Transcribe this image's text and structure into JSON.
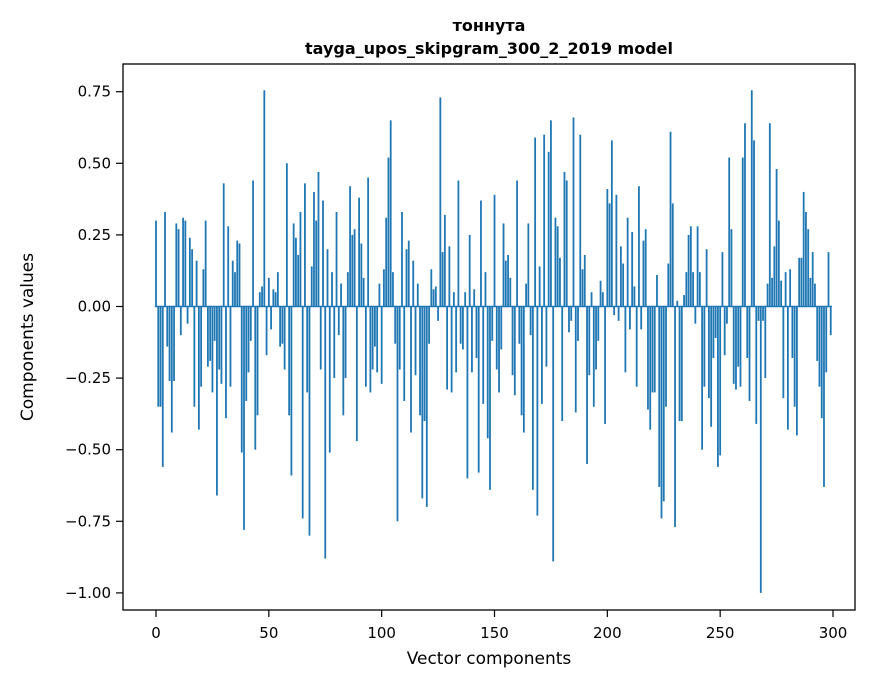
{
  "chart_data": {
    "type": "bar",
    "title_line1": "тоннута",
    "title_line2": "tayga_upos_skipgram_300_2_2019 model",
    "xlabel": "Vector components",
    "ylabel": "Components values",
    "bar_color": "#1f77b4",
    "spine_color": "#000000",
    "background_color": "#ffffff",
    "legend": "none",
    "grid": false,
    "xlim": [
      -15,
      310
    ],
    "ylim": [
      -1.06,
      0.85
    ],
    "x_tick_values": [
      0,
      50,
      100,
      150,
      200,
      250,
      300
    ],
    "x_tick_labels": [
      "0",
      "50",
      "100",
      "150",
      "200",
      "250",
      "300"
    ],
    "y_tick_values": [
      0.75,
      0.5,
      0.25,
      0.0,
      -0.25,
      -0.5,
      -0.75,
      -1.0
    ],
    "y_tick_labels": [
      "0.75",
      "0.50",
      "0.25",
      "0.00",
      "−0.25",
      "−0.50",
      "−0.75",
      "−1.00"
    ],
    "x_start_index": 0,
    "values": [
      0.3,
      -0.35,
      -0.35,
      -0.56,
      0.33,
      -0.14,
      -0.26,
      -0.44,
      -0.26,
      0.29,
      0.27,
      -0.1,
      0.31,
      0.3,
      -0.06,
      0.24,
      0.2,
      -0.35,
      0.16,
      -0.43,
      -0.28,
      0.13,
      0.3,
      -0.21,
      -0.19,
      -0.3,
      -0.12,
      -0.66,
      -0.22,
      -0.27,
      0.43,
      -0.39,
      0.28,
      -0.28,
      0.16,
      0.12,
      0.23,
      0.22,
      -0.51,
      -0.78,
      -0.33,
      -0.23,
      -0.12,
      0.44,
      -0.5,
      -0.38,
      0.05,
      0.07,
      0.755,
      -0.17,
      0.1,
      -0.08,
      0.06,
      0.05,
      0.12,
      -0.14,
      -0.13,
      -0.22,
      0.5,
      -0.38,
      -0.59,
      0.29,
      0.24,
      0.18,
      0.33,
      -0.74,
      0.43,
      -0.3,
      -0.8,
      0.14,
      0.4,
      0.3,
      0.47,
      -0.22,
      0.37,
      -0.88,
      0.2,
      -0.51,
      0.12,
      -0.25,
      0.33,
      -0.1,
      0.08,
      -0.38,
      -0.25,
      0.12,
      0.42,
      0.25,
      0.27,
      -0.47,
      0.38,
      0.22,
      0.1,
      -0.28,
      0.45,
      -0.3,
      -0.22,
      -0.14,
      -0.23,
      0.08,
      -0.27,
      0.13,
      0.31,
      0.52,
      0.65,
      0.12,
      -0.13,
      -0.75,
      -0.22,
      0.33,
      -0.33,
      0.2,
      0.23,
      -0.44,
      0.16,
      -0.24,
      0.08,
      -0.38,
      -0.67,
      -0.4,
      -0.7,
      -0.13,
      0.13,
      0.06,
      0.07,
      -0.05,
      0.73,
      0.19,
      0.32,
      -0.29,
      0.21,
      -0.3,
      0.05,
      -0.23,
      0.44,
      -0.13,
      -0.15,
      0.05,
      -0.6,
      0.25,
      -0.23,
      0.06,
      -0.18,
      -0.58,
      0.37,
      -0.34,
      0.12,
      -0.46,
      -0.64,
      -0.12,
      0.39,
      -0.22,
      -0.3,
      -0.15,
      0.29,
      0.16,
      0.18,
      0.1,
      -0.24,
      -0.31,
      0.44,
      -0.13,
      -0.38,
      -0.44,
      0.08,
      0.29,
      -0.1,
      -0.64,
      0.59,
      -0.73,
      0.14,
      -0.34,
      0.6,
      -0.21,
      0.54,
      0.65,
      -0.89,
      0.31,
      0.28,
      0.17,
      -0.4,
      0.47,
      0.44,
      -0.09,
      -0.05,
      0.66,
      -0.37,
      -0.12,
      0.6,
      0.13,
      0.18,
      -0.55,
      -0.24,
      0.05,
      -0.35,
      -0.22,
      -0.12,
      0.09,
      0.05,
      -0.41,
      0.41,
      0.36,
      0.58,
      -0.03,
      0.39,
      -0.05,
      0.21,
      0.15,
      -0.23,
      0.31,
      -0.08,
      0.26,
      0.07,
      -0.28,
      0.42,
      -0.08,
      0.23,
      0.27,
      -0.36,
      -0.43,
      -0.3,
      -0.3,
      0.11,
      -0.63,
      -0.74,
      -0.68,
      -0.35,
      0.15,
      0.61,
      0.36,
      -0.77,
      0.02,
      -0.4,
      -0.4,
      0.04,
      0.12,
      0.25,
      0.28,
      0.12,
      -0.06,
      0.28,
      0.12,
      -0.5,
      -0.28,
      0.2,
      -0.32,
      -0.42,
      -0.18,
      -0.11,
      -0.56,
      -0.52,
      0.19,
      -0.17,
      -0.06,
      0.52,
      0.27,
      -0.27,
      -0.29,
      -0.21,
      -0.28,
      0.52,
      0.64,
      -0.18,
      -0.33,
      0.755,
      0.58,
      -0.41,
      -0.05,
      -1.0,
      -0.05,
      -0.25,
      0.08,
      0.64,
      0.1,
      0.21,
      0.48,
      0.3,
      0.09,
      -0.32,
      0.12,
      -0.43,
      0.13,
      -0.18,
      -0.35,
      -0.45,
      0.17,
      0.17,
      0.4,
      0.33,
      0.27,
      0.1,
      0.19,
      0.08,
      -0.19,
      -0.28,
      -0.39,
      -0.63,
      -0.23,
      0.19,
      -0.1
    ]
  }
}
